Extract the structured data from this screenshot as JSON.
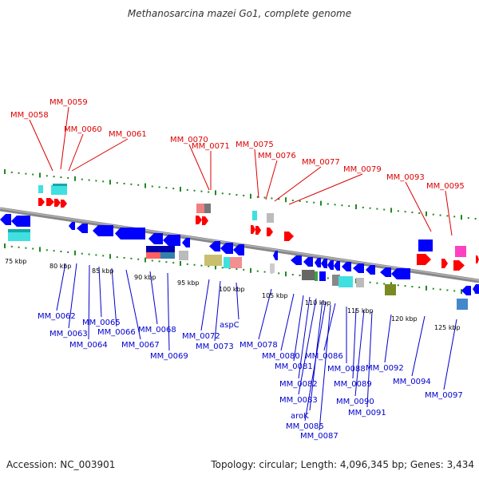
{
  "title": "Methanosarcina mazei Go1, complete genome",
  "footer": {
    "accession": "Accession: NC_003901",
    "summary": "Topology: circular; Length: 4,096,345 bp; Genes: 3,434"
  },
  "colors": {
    "forward_label": "#dd0000",
    "reverse_label": "#0000cc",
    "backbone": "#777777",
    "tick": "#228822",
    "forward_gene": "#ff0000",
    "reverse_gene": "#0000ff"
  },
  "kbp_ticks": [
    "75 kbp",
    "80 kbp",
    "85 kbp",
    "90 kbp",
    "95 kbp",
    "100 kbp",
    "105 kbp",
    "110 kbp",
    "115 kbp",
    "120 kbp",
    "125 kbp"
  ],
  "top_labels": [
    "MM_0058",
    "MM_0059",
    "MM_0060",
    "MM_0061",
    "MM_0070",
    "MM_0071",
    "MM_0075",
    "MM_0076",
    "MM_0077",
    "MM_0079",
    "MM_0093",
    "MM_0095"
  ],
  "bottom_labels": [
    "MM_0062",
    "MM_0063",
    "MM_0064",
    "MM_0065",
    "MM_0066",
    "MM_0067",
    "MM_0068",
    "MM_0069",
    "MM_0072",
    "MM_0073",
    "aspC",
    "MM_0078",
    "MM_0080",
    "MM_0081",
    "MM_0082",
    "MM_0083",
    "aroK",
    "MM_0085",
    "MM_0086",
    "MM_0087",
    "MM_0088",
    "MM_0089",
    "MM_0090",
    "MM_0091",
    "MM_0092",
    "MM_0094",
    "MM_0097"
  ]
}
